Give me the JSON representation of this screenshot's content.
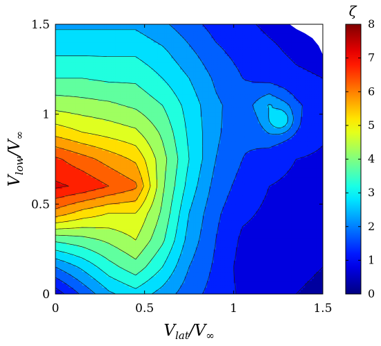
{
  "chart_data": {
    "type": "heatmap",
    "subtype": "filled-contour",
    "title": "",
    "xlabel": {
      "v": "V",
      "sub": "lat",
      "sep": "/V",
      "inf": "∞"
    },
    "ylabel": {
      "v": "V",
      "sub": "low",
      "sep": "/V",
      "inf": "∞"
    },
    "xlim": [
      0,
      1.5
    ],
    "ylim": [
      0,
      1.5
    ],
    "xticks": [
      0,
      0.5,
      1,
      1.5
    ],
    "xtick_labels": [
      "0",
      "0.5",
      "1",
      "1.5"
    ],
    "yticks": [
      0,
      0.5,
      1,
      1.5
    ],
    "ytick_labels": [
      "0",
      "0.5",
      "1",
      "1.5"
    ],
    "colorbar": {
      "label": "ζ",
      "range": [
        0,
        8
      ],
      "ticks": [
        0,
        1,
        2,
        3,
        4,
        5,
        6,
        7,
        8
      ],
      "tick_labels": [
        "0",
        "1",
        "2",
        "3",
        "4",
        "5",
        "6",
        "7",
        "8"
      ],
      "colormap": "jet"
    },
    "contour_step": 0.5,
    "grid": false,
    "features": [
      {
        "name": "global-maximum",
        "x": 0.1,
        "y": 0.62,
        "value": 7.3
      },
      {
        "name": "local-maximum",
        "x": 1.26,
        "y": 0.97,
        "value": 2.9
      }
    ],
    "sample_values": {
      "x": [
        0,
        0.15,
        0.3,
        0.45,
        0.6,
        0.75,
        0.9,
        1.05,
        1.2,
        1.35,
        1.5
      ],
      "y": [
        0,
        0.15,
        0.3,
        0.45,
        0.6,
        0.75,
        0.9,
        1.05,
        1.2,
        1.35,
        1.5
      ],
      "z": [
        [
          0.7,
          1.6,
          2.4,
          2.8,
          2.3,
          1.7,
          1.3,
          0.9,
          0.6,
          0.5,
          0.4
        ],
        [
          2.0,
          2.6,
          3.3,
          3.8,
          3.0,
          2.0,
          1.4,
          0.8,
          0.7,
          0.6,
          0.5
        ],
        [
          3.6,
          3.8,
          4.1,
          4.5,
          3.6,
          2.3,
          1.5,
          0.9,
          0.8,
          0.6,
          0.6
        ],
        [
          5.8,
          5.3,
          5.0,
          5.0,
          3.9,
          2.5,
          1.6,
          1.1,
          0.9,
          0.8,
          0.7
        ],
        [
          7.1,
          6.9,
          6.5,
          6.1,
          4.1,
          2.8,
          1.8,
          1.3,
          1.0,
          0.9,
          0.8
        ],
        [
          6.6,
          6.2,
          5.8,
          5.4,
          4.2,
          3.0,
          2.0,
          1.5,
          1.2,
          1.0,
          0.9
        ],
        [
          5.3,
          5.0,
          4.8,
          4.6,
          3.9,
          2.9,
          2.1,
          1.6,
          1.9,
          1.4,
          1.1
        ],
        [
          4.3,
          4.2,
          4.1,
          3.9,
          3.5,
          2.8,
          2.1,
          1.7,
          2.5,
          1.6,
          1.1
        ],
        [
          3.5,
          3.5,
          3.4,
          3.4,
          3.0,
          2.5,
          1.9,
          1.5,
          1.3,
          1.1,
          1.0
        ],
        [
          2.9,
          2.9,
          2.9,
          2.9,
          2.6,
          2.1,
          1.6,
          1.3,
          1.1,
          0.9,
          0.8
        ],
        [
          2.4,
          2.4,
          2.4,
          2.4,
          2.1,
          1.7,
          1.3,
          1.1,
          0.9,
          0.8,
          0.7
        ]
      ]
    }
  }
}
